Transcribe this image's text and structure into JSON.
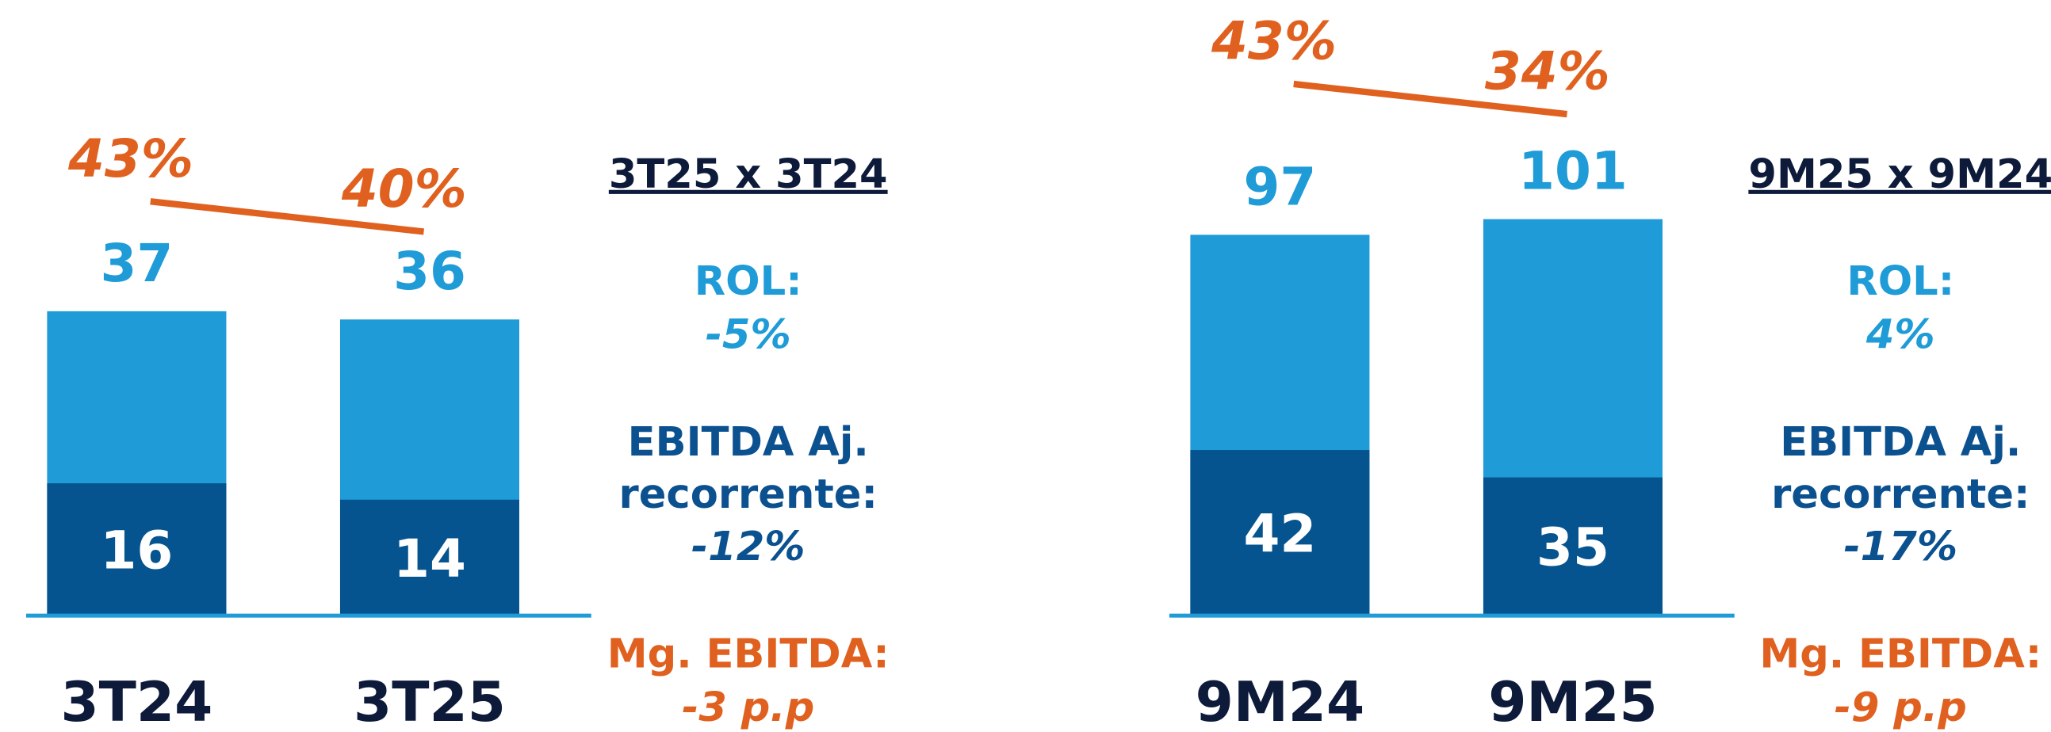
{
  "chart_data": [
    {
      "type": "bar",
      "categories": [
        "3T24",
        "3T25"
      ],
      "ylim": [
        0,
        75
      ],
      "y2lim": [
        2,
        63
      ],
      "series": [
        {
          "name": "ROL",
          "color": "#1f9bd7",
          "values": [
            37,
            36
          ]
        },
        {
          "name": "EBITDA Aj. recorrente",
          "color": "#06548f",
          "values": [
            16,
            14
          ]
        },
        {
          "name": "Mg. EBITDA",
          "color": "#e0611f",
          "axis": "y2",
          "values": [
            43,
            40
          ],
          "value_labels": [
            "43%",
            "40%"
          ]
        }
      ],
      "comparison": {
        "title": "3T25 x 3T24",
        "rol_label": "ROL:",
        "rol_change": "-5%",
        "ebitda_label": [
          "EBITDA Aj.",
          "recorrente:"
        ],
        "ebitda_change": "-12%",
        "margin_label": "Mg. EBITDA:",
        "margin_change": "-3 p.p"
      }
    },
    {
      "type": "bar",
      "categories": [
        "9M24",
        "9M25"
      ],
      "ylim": [
        0,
        157
      ],
      "y2lim": [
        -115,
        68
      ],
      "series": [
        {
          "name": "ROL",
          "color": "#1f9bd7",
          "values": [
            97,
            101
          ]
        },
        {
          "name": "EBITDA Aj. recorrente",
          "color": "#06548f",
          "values": [
            42,
            35
          ]
        },
        {
          "name": "Mg. EBITDA",
          "color": "#e0611f",
          "axis": "y2",
          "values": [
            43,
            34
          ],
          "value_labels": [
            "43%",
            "34%"
          ]
        }
      ],
      "comparison": {
        "title": "9M25 x 9M24",
        "rol_label": "ROL:",
        "rol_change": "4%",
        "ebitda_label": [
          "EBITDA Aj.",
          "recorrente:"
        ],
        "ebitda_change": "-17%",
        "margin_label": "Mg. EBITDA:",
        "margin_change": "-9 p.p"
      }
    }
  ]
}
